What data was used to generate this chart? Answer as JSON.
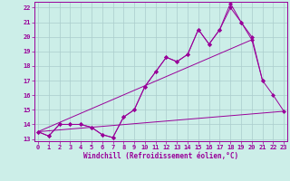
{
  "bg_color": "#cceee8",
  "line_color": "#990099",
  "grid_color": "#aacccc",
  "xlabel": "Windchill (Refroidissement éolien,°C)",
  "ylim_min": 13,
  "ylim_max": 22.4,
  "xlim_min": -0.3,
  "xlim_max": 23.3,
  "yticks": [
    13,
    14,
    15,
    16,
    17,
    18,
    19,
    20,
    21,
    22
  ],
  "xticks": [
    0,
    1,
    2,
    3,
    4,
    5,
    6,
    7,
    8,
    9,
    10,
    11,
    12,
    13,
    14,
    15,
    16,
    17,
    18,
    19,
    20,
    21,
    22,
    23
  ],
  "series": [
    {
      "x": [
        0,
        1,
        2,
        3,
        4,
        5,
        6,
        7,
        8,
        9,
        10,
        11,
        12,
        13,
        14,
        15,
        16,
        17,
        18,
        19,
        20,
        21,
        22,
        23
      ],
      "y": [
        13.5,
        13.2,
        14.0,
        14.0,
        14.0,
        13.8,
        13.3,
        13.1,
        14.5,
        15.0,
        16.6,
        17.6,
        18.6,
        18.3,
        18.8,
        20.5,
        19.5,
        20.5,
        22.3,
        21.0,
        19.8,
        17.0,
        16.0,
        14.9
      ],
      "has_markers": true
    },
    {
      "x": [
        0,
        1,
        2,
        3,
        4,
        5,
        6,
        7,
        8,
        9,
        10,
        11,
        12,
        13,
        14,
        15,
        16,
        17,
        18,
        19,
        20,
        21
      ],
      "y": [
        13.5,
        13.2,
        14.0,
        14.0,
        14.0,
        13.8,
        13.3,
        13.1,
        14.5,
        15.0,
        16.6,
        17.6,
        18.6,
        18.3,
        18.8,
        20.5,
        19.5,
        20.5,
        22.0,
        21.0,
        20.0,
        17.0
      ],
      "has_markers": true
    },
    {
      "x": [
        0,
        23
      ],
      "y": [
        13.5,
        14.9
      ],
      "has_markers": false
    },
    {
      "x": [
        0,
        20
      ],
      "y": [
        13.5,
        19.8
      ],
      "has_markers": false
    }
  ]
}
